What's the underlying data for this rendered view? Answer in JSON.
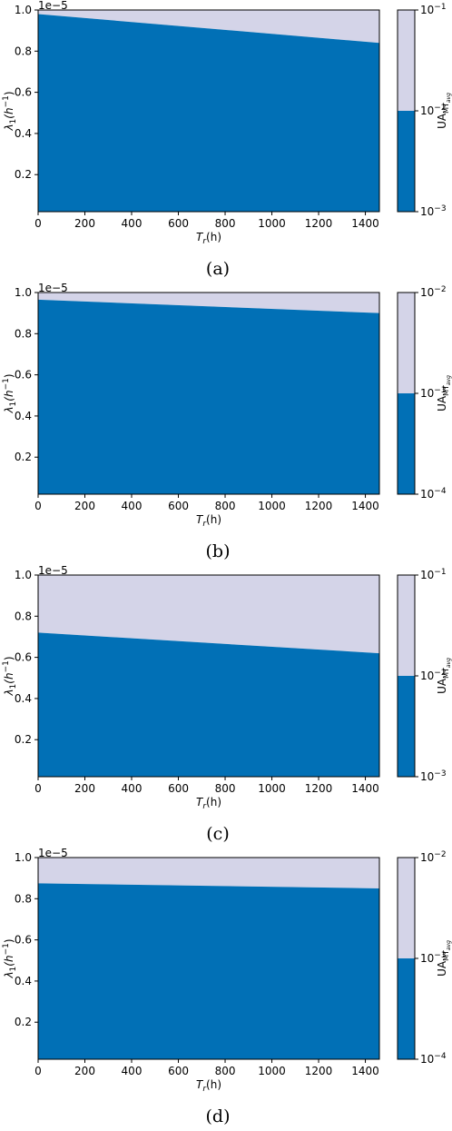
{
  "chart_data": [
    {
      "type": "area",
      "caption": "(a)",
      "x": [
        0,
        1460
      ],
      "boundary": [
        0.98,
        0.84
      ],
      "xlim": [
        0,
        1460
      ],
      "ylim": [
        0.02,
        1.0
      ],
      "xticks": [
        "0",
        "200",
        "400",
        "600",
        "800",
        "1000",
        "1200",
        "1400"
      ],
      "yticks": [
        "0.2",
        "0.4",
        "0.6",
        "0.8",
        "1.0"
      ],
      "yexponent": "1e−5",
      "xlabel": {
        "main": "T",
        "sub": "r",
        "rest": "(h)"
      },
      "ylabel": {
        "main": "λ",
        "sub": "1",
        "rest": "(h",
        "sup": "−1",
        "close": ")"
      },
      "colorbar": {
        "label": {
          "main": "UA",
          "sub": "MT",
          "subsub": "avg"
        },
        "ticks": [
          {
            "base": "10",
            "exp": "−1"
          },
          {
            "base": "10",
            "exp": "−2"
          },
          {
            "base": "10",
            "exp": "−3"
          }
        ],
        "upper_color": "#d4d4e8",
        "lower_color": "#0170b6"
      },
      "upper_color": "#d4d4e8",
      "lower_color": "#0170b6"
    },
    {
      "type": "area",
      "caption": "(b)",
      "x": [
        0,
        1460
      ],
      "boundary": [
        0.965,
        0.9
      ],
      "xlim": [
        0,
        1460
      ],
      "ylim": [
        0.02,
        1.0
      ],
      "xticks": [
        "0",
        "200",
        "400",
        "600",
        "800",
        "1000",
        "1200",
        "1400"
      ],
      "yticks": [
        "0.2",
        "0.4",
        "0.6",
        "0.8",
        "1.0"
      ],
      "yexponent": "1e−5",
      "xlabel": {
        "main": "T",
        "sub": "r",
        "rest": "(h)"
      },
      "ylabel": {
        "main": "λ",
        "sub": "1",
        "rest": "(h",
        "sup": "−1",
        "close": ")"
      },
      "colorbar": {
        "label": {
          "main": "UA",
          "sub": "MT",
          "subsub": "avg"
        },
        "ticks": [
          {
            "base": "10",
            "exp": "−2"
          },
          {
            "base": "10",
            "exp": "−3"
          },
          {
            "base": "10",
            "exp": "−4"
          }
        ],
        "upper_color": "#d4d4e8",
        "lower_color": "#0170b6"
      },
      "upper_color": "#d4d4e8",
      "lower_color": "#0170b6"
    },
    {
      "type": "area",
      "caption": "(c)",
      "x": [
        0,
        1460
      ],
      "boundary": [
        0.72,
        0.62
      ],
      "xlim": [
        0,
        1460
      ],
      "ylim": [
        0.02,
        1.0
      ],
      "xticks": [
        "0",
        "200",
        "400",
        "600",
        "800",
        "1000",
        "1200",
        "1400"
      ],
      "yticks": [
        "0.2",
        "0.4",
        "0.6",
        "0.8",
        "1.0"
      ],
      "yexponent": "1e−5",
      "xlabel": {
        "main": "T",
        "sub": "r",
        "rest": "(h)"
      },
      "ylabel": {
        "main": "λ",
        "sub": "1",
        "rest": "(h",
        "sup": "−1",
        "close": ")"
      },
      "colorbar": {
        "label": {
          "main": "UA",
          "sub": "MT",
          "subsub": "avg"
        },
        "ticks": [
          {
            "base": "10",
            "exp": "−1"
          },
          {
            "base": "10",
            "exp": "−2"
          },
          {
            "base": "10",
            "exp": "−3"
          }
        ],
        "upper_color": "#d4d4e8",
        "lower_color": "#0170b6"
      },
      "upper_color": "#d4d4e8",
      "lower_color": "#0170b6"
    },
    {
      "type": "area",
      "caption": "(d)",
      "x": [
        0,
        1460
      ],
      "boundary": [
        0.875,
        0.85
      ],
      "xlim": [
        0,
        1460
      ],
      "ylim": [
        0.02,
        1.0
      ],
      "xticks": [
        "0",
        "200",
        "400",
        "600",
        "800",
        "1000",
        "1200",
        "1400"
      ],
      "yticks": [
        "0.2",
        "0.4",
        "0.6",
        "0.8",
        "1.0"
      ],
      "yexponent": "1e−5",
      "xlabel": {
        "main": "T",
        "sub": "r",
        "rest": "(h)"
      },
      "ylabel": {
        "main": "λ",
        "sub": "1",
        "rest": "(h",
        "sup": "−1",
        "close": ")"
      },
      "colorbar": {
        "label": {
          "main": "UA",
          "sub": "MT",
          "subsub": "avg"
        },
        "ticks": [
          {
            "base": "10",
            "exp": "−2"
          },
          {
            "base": "10",
            "exp": "−3"
          },
          {
            "base": "10",
            "exp": "−4"
          }
        ],
        "upper_color": "#d4d4e8",
        "lower_color": "#0170b6"
      },
      "upper_color": "#d4d4e8",
      "lower_color": "#0170b6"
    }
  ]
}
